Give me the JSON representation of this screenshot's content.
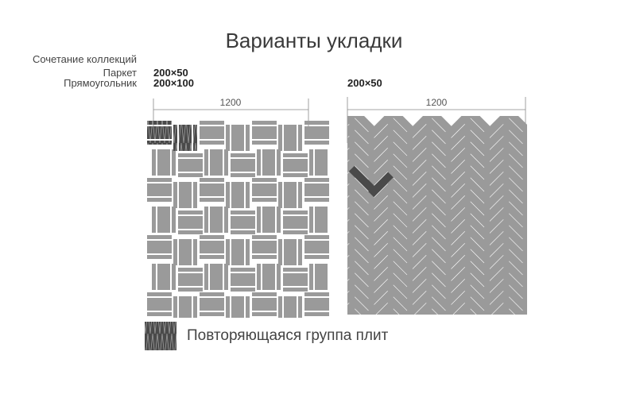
{
  "title": "Варианты укладки",
  "labels": {
    "collections": "Сочетание коллекций",
    "parquet": "Паркет",
    "rectangle": "Прямоугольник"
  },
  "left_layout": {
    "parquet_size": "200×50",
    "rectangle_size": "200×100",
    "dimension": "1200"
  },
  "right_layout": {
    "size": "200×50",
    "dimension": "1200"
  },
  "legend": {
    "label": "Повторяющаяся группа плит"
  },
  "colors": {
    "tile": "#9a9a9a",
    "highlight": "#4a4a4a",
    "lines": "#888888"
  }
}
